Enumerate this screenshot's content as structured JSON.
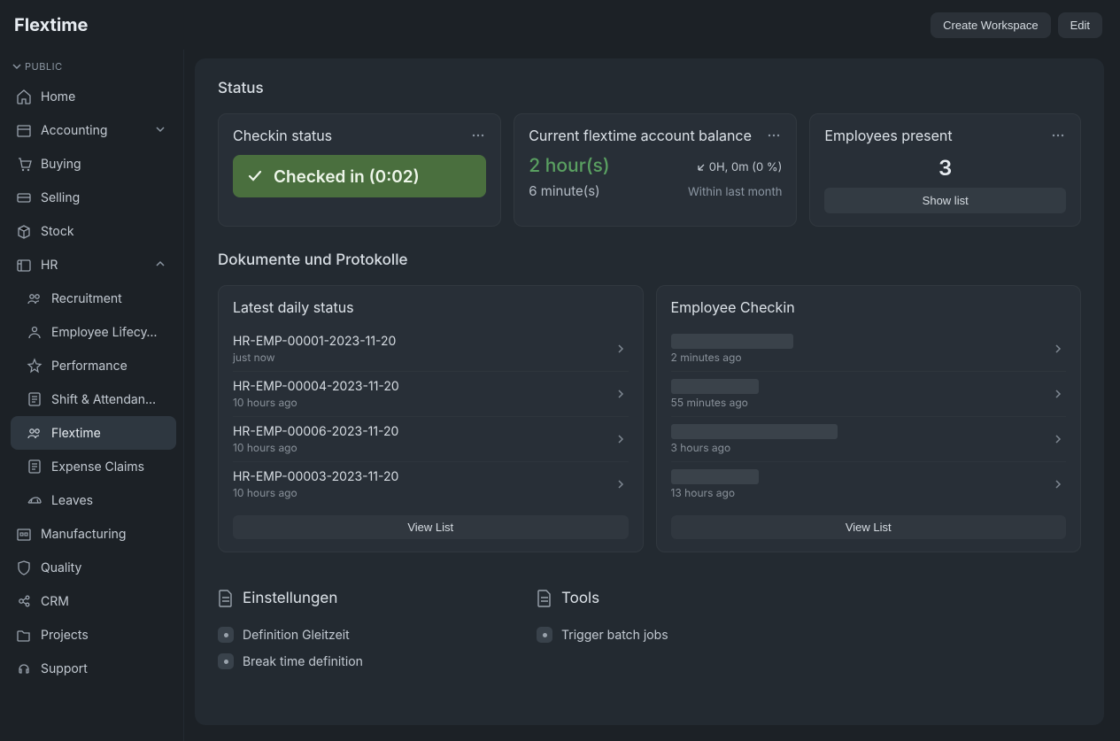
{
  "colors": {
    "bg": "#1c2126",
    "panel": "#232a31",
    "card": "#282f37",
    "card_border": "#31383f",
    "banner_green": "#4a6f3e",
    "text_primary": "#e7ecf1",
    "text_secondary": "#c3cad2",
    "text_muted": "#8c97a3",
    "accent_green": "#5aa061"
  },
  "header": {
    "title": "Flextime",
    "create_workspace_label": "Create Workspace",
    "edit_label": "Edit"
  },
  "sidebar": {
    "section_label": "PUBLIC",
    "items": [
      {
        "label": "Home",
        "children": []
      },
      {
        "label": "Accounting",
        "expandable": true,
        "expanded": false,
        "children": []
      },
      {
        "label": "Buying",
        "children": []
      },
      {
        "label": "Selling",
        "children": []
      },
      {
        "label": "Stock",
        "children": []
      },
      {
        "label": "HR",
        "expandable": true,
        "expanded": true,
        "children": [
          {
            "label": "Recruitment"
          },
          {
            "label": "Employee Lifecy…"
          },
          {
            "label": "Performance"
          },
          {
            "label": "Shift & Attendan…"
          },
          {
            "label": "Flextime",
            "active": true
          },
          {
            "label": "Expense Claims"
          },
          {
            "label": "Leaves"
          }
        ]
      },
      {
        "label": "Manufacturing",
        "children": []
      },
      {
        "label": "Quality",
        "children": []
      },
      {
        "label": "CRM",
        "children": []
      },
      {
        "label": "Projects",
        "children": []
      },
      {
        "label": "Support",
        "children": []
      }
    ]
  },
  "status": {
    "section_title": "Status",
    "checkin": {
      "title": "Checkin status",
      "banner_text": "Checked in (0:02)"
    },
    "balance": {
      "title": "Current flextime account balance",
      "hours_text": "2 hour(s)",
      "delta_text": "0H, 0m (0 %)",
      "minutes_text": "6 minute(s)",
      "period_text": "Within last month"
    },
    "present": {
      "title": "Employees present",
      "count": "3",
      "show_list_label": "Show list"
    }
  },
  "documents": {
    "section_title": "Dokumente und Protokolle",
    "daily_status": {
      "title": "Latest daily status",
      "view_list_label": "View List",
      "rows": [
        {
          "title": "HR-EMP-00001-2023-11-20",
          "sub": "just now"
        },
        {
          "title": "HR-EMP-00004-2023-11-20",
          "sub": "10 hours ago"
        },
        {
          "title": "HR-EMP-00006-2023-11-20",
          "sub": "10 hours ago"
        },
        {
          "title": "HR-EMP-00003-2023-11-20",
          "sub": "10 hours ago"
        }
      ]
    },
    "employee_checkin": {
      "title": "Employee Checkin",
      "view_list_label": "View List",
      "rows": [
        {
          "title": "██████████████",
          "sub": "2 minutes ago",
          "redacted": true
        },
        {
          "title": "██████████",
          "sub": "55 minutes ago",
          "redacted": true
        },
        {
          "title": "███████████████████",
          "sub": "3 hours ago",
          "redacted": true
        },
        {
          "title": "██████████",
          "sub": "13 hours ago",
          "redacted": true
        }
      ]
    }
  },
  "settings_group": {
    "title": "Einstellungen",
    "items": [
      {
        "label": "Definition Gleitzeit"
      },
      {
        "label": "Break time definition"
      }
    ]
  },
  "tools_group": {
    "title": "Tools",
    "items": [
      {
        "label": "Trigger batch jobs"
      }
    ]
  }
}
